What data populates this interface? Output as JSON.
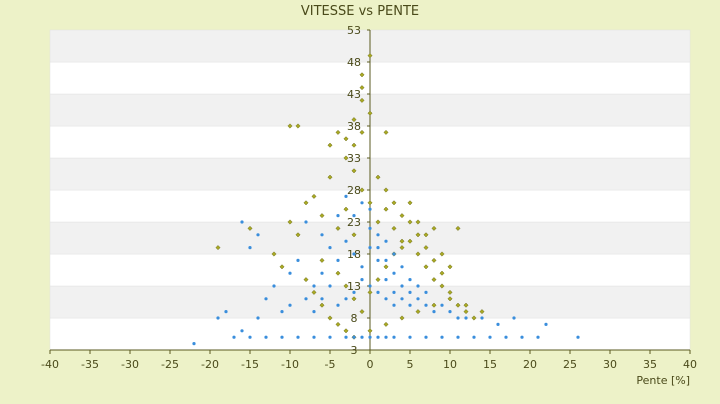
{
  "chart_data": {
    "type": "scatter",
    "title": "VITESSE vs PENTE",
    "xlabel": "Pente [%]",
    "ylabel": "",
    "xlim": [
      -40,
      40
    ],
    "ylim": [
      3,
      53
    ],
    "x_ticks": [
      "-40",
      "-35",
      "-30",
      "-25",
      "-20",
      "-15",
      "-10",
      "-5",
      "0",
      "5",
      "10",
      "15",
      "20",
      "25",
      "30",
      "35",
      "40"
    ],
    "y_ticks": [
      "3",
      "8",
      "13",
      "18",
      "23",
      "28",
      "33",
      "38",
      "43",
      "48",
      "53"
    ],
    "grid": "horizontal alternating bands",
    "legend": "none",
    "colors": {
      "background": "#edf2c8",
      "band_light": "#ffffff",
      "band_dark": "#f1f1f1",
      "axis": "#5a5a20",
      "text": "#4a4a1a",
      "series_olive": "#a8a824",
      "series_blue": "#3a8edc"
    },
    "series": [
      {
        "color": "#a8a824",
        "marker": "diamond",
        "points": [
          [
            -4,
            22
          ],
          [
            -3,
            25
          ],
          [
            -2,
            21
          ],
          [
            -1,
            28
          ],
          [
            0,
            26
          ],
          [
            1,
            23
          ],
          [
            2,
            25
          ],
          [
            3,
            22
          ],
          [
            4,
            19
          ],
          [
            5,
            20
          ],
          [
            6,
            18
          ],
          [
            7,
            16
          ],
          [
            8,
            14
          ],
          [
            9,
            15
          ],
          [
            10,
            12
          ],
          [
            -6,
            24
          ],
          [
            -7,
            27
          ],
          [
            -5,
            30
          ],
          [
            -3,
            33
          ],
          [
            -2,
            35
          ],
          [
            -1,
            37
          ],
          [
            0,
            40
          ],
          [
            -1,
            42
          ],
          [
            -2,
            31
          ],
          [
            -8,
            26
          ],
          [
            -9,
            21
          ],
          [
            -10,
            23
          ],
          [
            -12,
            18
          ],
          [
            -15,
            22
          ],
          [
            -19,
            19
          ],
          [
            -6,
            17
          ],
          [
            -4,
            15
          ],
          [
            -3,
            13
          ],
          [
            -2,
            11
          ],
          [
            -1,
            9
          ],
          [
            0,
            12
          ],
          [
            1,
            14
          ],
          [
            2,
            16
          ],
          [
            3,
            18
          ],
          [
            4,
            20
          ],
          [
            5,
            23
          ],
          [
            6,
            21
          ],
          [
            7,
            19
          ],
          [
            8,
            17
          ],
          [
            9,
            13
          ],
          [
            11,
            10
          ],
          [
            12,
            9
          ],
          [
            13,
            8
          ],
          [
            14,
            9
          ],
          [
            -1,
            46
          ],
          [
            0,
            49
          ],
          [
            -1,
            44
          ],
          [
            2,
            37
          ],
          [
            -2,
            39
          ],
          [
            -3,
            36
          ],
          [
            -10,
            38
          ],
          [
            -9,
            38
          ],
          [
            -4,
            37
          ],
          [
            -5,
            35
          ],
          [
            1,
            30
          ],
          [
            2,
            28
          ],
          [
            3,
            26
          ],
          [
            4,
            24
          ],
          [
            5,
            26
          ],
          [
            6,
            23
          ],
          [
            7,
            21
          ],
          [
            8,
            22
          ],
          [
            9,
            18
          ],
          [
            10,
            16
          ],
          [
            11,
            22
          ],
          [
            -7,
            12
          ],
          [
            -8,
            14
          ],
          [
            -11,
            16
          ],
          [
            -6,
            10
          ],
          [
            -5,
            8
          ],
          [
            -4,
            7
          ],
          [
            -3,
            6
          ],
          [
            -2,
            5
          ],
          [
            0,
            6
          ],
          [
            2,
            7
          ],
          [
            4,
            8
          ],
          [
            6,
            9
          ],
          [
            8,
            10
          ],
          [
            10,
            11
          ],
          [
            12,
            10
          ]
        ]
      },
      {
        "color": "#3a8edc",
        "marker": "dot",
        "points": [
          [
            -3,
            20
          ],
          [
            -2,
            18
          ],
          [
            -1,
            16
          ],
          [
            0,
            22
          ],
          [
            1,
            19
          ],
          [
            2,
            17
          ],
          [
            3,
            15
          ],
          [
            4,
            13
          ],
          [
            5,
            12
          ],
          [
            -4,
            17
          ],
          [
            -5,
            19
          ],
          [
            -6,
            15
          ],
          [
            -7,
            13
          ],
          [
            -8,
            11
          ],
          [
            -2,
            24
          ],
          [
            -1,
            26
          ],
          [
            0,
            25
          ],
          [
            1,
            21
          ],
          [
            2,
            14
          ],
          [
            3,
            12
          ],
          [
            4,
            11
          ],
          [
            5,
            10
          ],
          [
            6,
            11
          ],
          [
            7,
            10
          ],
          [
            8,
            9
          ],
          [
            9,
            10
          ],
          [
            10,
            9
          ],
          [
            11,
            8
          ],
          [
            12,
            8
          ],
          [
            -9,
            17
          ],
          [
            -10,
            15
          ],
          [
            -12,
            13
          ],
          [
            -14,
            21
          ],
          [
            -15,
            19
          ],
          [
            -16,
            23
          ],
          [
            -13,
            11
          ],
          [
            -11,
            9
          ],
          [
            -18,
            9
          ],
          [
            -19,
            8
          ],
          [
            -1,
            14
          ],
          [
            0,
            13
          ],
          [
            1,
            12
          ],
          [
            2,
            11
          ],
          [
            3,
            10
          ],
          [
            -2,
            12
          ],
          [
            -3,
            11
          ],
          [
            -4,
            10
          ],
          [
            -1,
            5
          ],
          [
            0,
            5
          ],
          [
            1,
            5
          ],
          [
            -2,
            5
          ],
          [
            2,
            5
          ],
          [
            -3,
            5
          ],
          [
            3,
            5
          ],
          [
            -5,
            5
          ],
          [
            5,
            5
          ],
          [
            -7,
            5
          ],
          [
            7,
            5
          ],
          [
            -9,
            5
          ],
          [
            9,
            5
          ],
          [
            -11,
            5
          ],
          [
            11,
            5
          ],
          [
            -13,
            5
          ],
          [
            13,
            5
          ],
          [
            -15,
            5
          ],
          [
            15,
            5
          ],
          [
            -17,
            5
          ],
          [
            17,
            5
          ],
          [
            19,
            5
          ],
          [
            21,
            5
          ],
          [
            -22,
            4
          ],
          [
            26,
            5
          ],
          [
            14,
            8
          ],
          [
            16,
            7
          ],
          [
            18,
            8
          ],
          [
            22,
            7
          ],
          [
            -4,
            24
          ],
          [
            -3,
            27
          ],
          [
            -6,
            21
          ],
          [
            -8,
            23
          ],
          [
            0,
            19
          ],
          [
            1,
            17
          ],
          [
            2,
            20
          ],
          [
            3,
            18
          ],
          [
            4,
            16
          ],
          [
            5,
            14
          ],
          [
            6,
            13
          ],
          [
            7,
            12
          ],
          [
            -5,
            13
          ],
          [
            -6,
            11
          ],
          [
            -7,
            9
          ],
          [
            -16,
            6
          ],
          [
            -14,
            8
          ],
          [
            -10,
            10
          ]
        ]
      }
    ]
  }
}
